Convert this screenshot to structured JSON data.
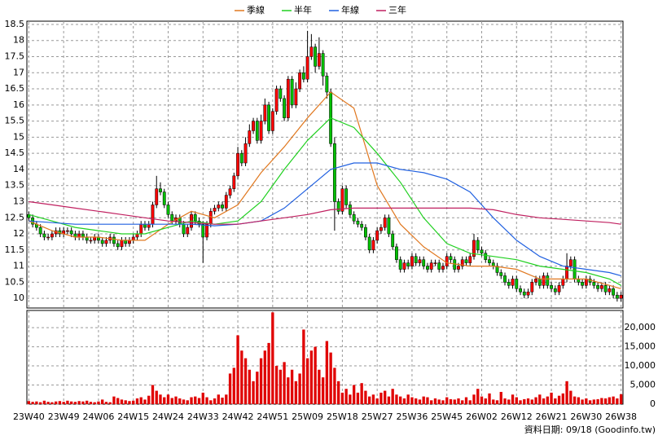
{
  "chart_data": {
    "type": "candlestick",
    "source": "資料日期: 09/18 (Goodinfo.tw)",
    "legend": "top",
    "grid": true,
    "up_color": "#ff0000",
    "down_color": "#00c000",
    "volume_color": "#e00000",
    "categories": [
      "23W40",
      null,
      null,
      null,
      null,
      null,
      null,
      null,
      null,
      "23W49",
      null,
      null,
      null,
      null,
      null,
      null,
      null,
      null,
      "24W06",
      null,
      null,
      null,
      null,
      null,
      null,
      null,
      null,
      "24W15",
      null,
      null,
      null,
      null,
      null,
      null,
      null,
      null,
      "24W24",
      null,
      null,
      null,
      null,
      null,
      null,
      null,
      null,
      "24W33",
      null,
      null,
      null,
      null,
      null,
      null,
      null,
      null,
      "24W42",
      null,
      null,
      null,
      null,
      null,
      null,
      null,
      null,
      "24W51",
      null,
      null,
      null,
      null,
      null,
      null,
      null,
      null,
      "25W09",
      null,
      null,
      null,
      null,
      null,
      null,
      null,
      null,
      "25W18",
      null,
      null,
      null,
      null,
      null,
      null,
      null,
      null,
      "25W27",
      null,
      null,
      null,
      null,
      null,
      null,
      null,
      null,
      "25W36",
      null,
      null,
      null,
      null,
      null,
      null,
      null,
      null,
      "25W45",
      null,
      null,
      null,
      null,
      null,
      null,
      null,
      null,
      "26W02",
      null,
      null,
      null,
      null,
      null,
      null,
      null,
      null,
      "26W12",
      null,
      null,
      null,
      null,
      null,
      null,
      null,
      null,
      "26W21",
      null,
      null,
      null,
      null,
      null,
      null,
      null,
      null,
      "26W30",
      null,
      null,
      null,
      null,
      null,
      null,
      null,
      null,
      "26W38"
    ],
    "open": [
      12.6,
      12.5,
      12.3,
      12.2,
      12.0,
      11.9,
      11.9,
      12.0,
      12.1,
      12.0,
      12.1,
      12.1,
      12.0,
      11.9,
      12.0,
      11.9,
      11.8,
      11.8,
      11.9,
      11.8,
      11.7,
      11.8,
      11.9,
      11.7,
      11.6,
      11.8,
      11.7,
      11.8,
      11.9,
      12.0,
      12.3,
      12.2,
      12.3,
      12.9,
      13.4,
      13.3,
      12.9,
      12.6,
      12.4,
      12.5,
      12.3,
      12.0,
      12.2,
      12.6,
      12.4,
      12.3,
      11.9,
      12.3,
      12.7,
      12.8,
      12.9,
      12.8,
      13.2,
      13.4,
      13.8,
      14.5,
      14.2,
      14.8,
      15.2,
      15.5,
      14.9,
      15.5,
      16.0,
      15.2,
      15.8,
      16.5,
      16.2,
      15.6,
      16.8,
      16.0,
      16.5,
      17.0,
      16.8,
      17.5,
      17.8,
      17.2,
      17.6,
      16.9,
      16.4,
      14.8,
      13.0,
      12.7,
      13.4,
      12.9,
      12.6,
      12.4,
      12.3,
      12.2,
      11.9,
      11.5,
      11.8,
      12.1,
      12.2,
      12.5,
      12.0,
      11.6,
      11.2,
      10.9,
      11.1,
      11.0,
      11.3,
      11.1,
      11.2,
      11.0,
      10.9,
      11.1,
      11.1,
      10.9,
      11.0,
      11.3,
      11.2,
      10.9,
      11.0,
      11.2,
      11.1,
      11.3,
      11.8,
      11.5,
      11.4,
      11.2,
      11.1,
      11.0,
      10.8,
      10.7,
      10.5,
      10.4,
      10.6,
      10.3,
      10.2,
      10.1,
      10.2,
      10.5,
      10.6,
      10.4,
      10.7,
      10.4,
      10.3,
      10.2,
      10.4,
      10.6,
      11.0,
      11.2,
      10.6,
      10.5,
      10.4,
      10.6,
      10.5,
      10.4,
      10.3,
      10.4,
      10.2,
      10.3,
      10.1,
      10.0
    ],
    "high": [
      12.7,
      12.6,
      12.4,
      12.3,
      12.1,
      12.0,
      12.1,
      12.2,
      12.2,
      12.2,
      12.2,
      12.2,
      12.1,
      12.1,
      12.1,
      12.0,
      11.9,
      12.0,
      12.0,
      11.9,
      11.9,
      12.0,
      12.0,
      11.8,
      11.9,
      11.9,
      11.9,
      12.0,
      12.1,
      12.4,
      12.4,
      12.4,
      13.0,
      13.8,
      13.6,
      13.4,
      13.0,
      12.7,
      12.6,
      12.6,
      12.4,
      12.3,
      12.7,
      12.7,
      12.5,
      12.4,
      12.4,
      12.8,
      12.9,
      13.0,
      13.0,
      13.3,
      13.5,
      13.9,
      14.7,
      14.6,
      15.0,
      15.4,
      15.6,
      15.6,
      15.7,
      16.2,
      16.1,
      15.9,
      16.6,
      16.6,
      16.3,
      16.9,
      16.9,
      16.7,
      17.1,
      17.2,
      18.3,
      18.2,
      17.9,
      18.1,
      17.7,
      17.0,
      16.5,
      15.0,
      13.1,
      13.5,
      13.5,
      13.0,
      12.7,
      12.5,
      12.4,
      12.3,
      12.0,
      11.9,
      12.2,
      12.3,
      12.6,
      12.6,
      12.1,
      11.7,
      11.3,
      11.2,
      11.2,
      11.4,
      11.4,
      11.3,
      11.3,
      11.1,
      11.2,
      11.2,
      11.2,
      11.1,
      11.4,
      11.4,
      11.3,
      11.1,
      11.3,
      11.3,
      11.4,
      12.0,
      11.9,
      11.6,
      11.5,
      11.3,
      11.2,
      11.1,
      10.9,
      10.8,
      10.6,
      10.7,
      10.7,
      10.4,
      10.3,
      10.3,
      10.6,
      10.7,
      10.7,
      10.8,
      10.8,
      10.5,
      10.4,
      10.5,
      10.7,
      11.4,
      11.3,
      11.3,
      10.7,
      10.6,
      10.7,
      10.7,
      10.6,
      10.5,
      10.5,
      10.5,
      10.4,
      10.4,
      10.2,
      10.2
    ],
    "low": [
      12.4,
      12.2,
      12.1,
      11.9,
      11.8,
      11.8,
      11.8,
      11.9,
      11.9,
      11.9,
      12.0,
      11.9,
      11.8,
      11.8,
      11.8,
      11.7,
      11.7,
      11.7,
      11.7,
      11.6,
      11.6,
      11.7,
      11.6,
      11.5,
      11.5,
      11.6,
      11.6,
      11.7,
      11.8,
      11.9,
      12.1,
      12.1,
      12.2,
      12.8,
      13.2,
      12.8,
      12.5,
      12.3,
      12.3,
      12.2,
      11.9,
      11.9,
      12.1,
      12.3,
      12.2,
      11.1,
      11.8,
      12.2,
      12.6,
      12.7,
      12.7,
      12.7,
      13.1,
      13.3,
      13.7,
      14.1,
      14.1,
      14.7,
      15.1,
      14.8,
      14.8,
      15.4,
      15.1,
      15.1,
      15.7,
      16.1,
      15.5,
      15.5,
      15.9,
      15.9,
      16.4,
      16.7,
      16.7,
      17.4,
      17.0,
      17.1,
      16.6,
      16.2,
      14.7,
      12.1,
      12.6,
      12.6,
      12.8,
      12.5,
      12.3,
      12.2,
      12.1,
      11.8,
      11.4,
      11.4,
      11.7,
      12.0,
      12.1,
      11.9,
      11.5,
      11.1,
      10.8,
      10.8,
      10.9,
      10.9,
      11.0,
      11.0,
      10.9,
      10.8,
      10.8,
      11.0,
      10.8,
      10.8,
      10.9,
      11.1,
      10.8,
      10.8,
      10.9,
      11.0,
      11.0,
      11.2,
      11.4,
      11.3,
      11.1,
      11.0,
      10.9,
      10.7,
      10.6,
      10.4,
      10.3,
      10.3,
      10.2,
      10.1,
      10.0,
      10.0,
      10.1,
      10.4,
      10.3,
      10.3,
      10.3,
      10.2,
      10.1,
      10.1,
      10.3,
      10.5,
      10.9,
      10.5,
      10.4,
      10.3,
      10.3,
      10.4,
      10.3,
      10.2,
      10.2,
      10.1,
      10.1,
      10.0,
      9.9,
      9.9
    ],
    "close": [
      12.5,
      12.3,
      12.2,
      12.0,
      11.9,
      11.9,
      12.0,
      12.1,
      12.0,
      12.1,
      12.1,
      12.0,
      11.9,
      12.0,
      11.9,
      11.8,
      11.8,
      11.9,
      11.8,
      11.7,
      11.8,
      11.9,
      11.7,
      11.6,
      11.8,
      11.7,
      11.8,
      11.9,
      12.0,
      12.3,
      12.2,
      12.3,
      12.9,
      13.4,
      13.3,
      12.9,
      12.6,
      12.4,
      12.5,
      12.3,
      12.0,
      12.2,
      12.6,
      12.4,
      12.3,
      11.9,
      12.3,
      12.7,
      12.8,
      12.9,
      12.8,
      13.2,
      13.4,
      13.8,
      14.5,
      14.2,
      14.8,
      15.2,
      15.5,
      14.9,
      15.5,
      16.0,
      15.2,
      15.8,
      16.5,
      16.2,
      15.6,
      16.8,
      16.0,
      16.5,
      17.0,
      16.8,
      17.5,
      17.8,
      17.2,
      17.6,
      16.9,
      16.4,
      14.8,
      13.0,
      12.7,
      13.4,
      12.9,
      12.6,
      12.4,
      12.3,
      12.2,
      11.9,
      11.5,
      11.8,
      12.1,
      12.2,
      12.5,
      12.0,
      11.6,
      11.2,
      10.9,
      11.1,
      11.0,
      11.3,
      11.1,
      11.2,
      11.0,
      10.9,
      11.1,
      11.1,
      10.9,
      11.0,
      11.3,
      11.2,
      10.9,
      11.0,
      11.2,
      11.1,
      11.3,
      11.8,
      11.5,
      11.4,
      11.2,
      11.1,
      11.0,
      10.8,
      10.7,
      10.5,
      10.4,
      10.6,
      10.3,
      10.2,
      10.1,
      10.2,
      10.5,
      10.6,
      10.4,
      10.7,
      10.4,
      10.3,
      10.2,
      10.4,
      10.6,
      11.0,
      11.2,
      10.6,
      10.5,
      10.4,
      10.6,
      10.5,
      10.4,
      10.3,
      10.4,
      10.2,
      10.3,
      10.1,
      10.0,
      10.1
    ],
    "volume": [
      800,
      600,
      700,
      500,
      900,
      600,
      500,
      700,
      800,
      600,
      900,
      700,
      600,
      800,
      700,
      900,
      600,
      500,
      700,
      1200,
      600,
      500,
      2000,
      1600,
      1200,
      1000,
      800,
      900,
      1500,
      1800,
      1200,
      2200,
      5000,
      3500,
      2500,
      1800,
      2500,
      1600,
      2000,
      1500,
      1200,
      1000,
      1800,
      2000,
      1600,
      3000,
      1800,
      1000,
      1500,
      2500,
      1700,
      2500,
      8000,
      9500,
      18000,
      14000,
      12000,
      9000,
      6000,
      8500,
      12000,
      14000,
      16000,
      24000,
      10000,
      9000,
      11000,
      7000,
      9000,
      6000,
      8000,
      19500,
      12000,
      14000,
      15000,
      9000,
      7000,
      16500,
      13500,
      9500,
      6000,
      3000,
      4000,
      2500,
      5000,
      3000,
      5500,
      3500,
      2000,
      2500,
      1500,
      3000,
      3500,
      2000,
      4000,
      2500,
      2000,
      1500,
      2500,
      1800,
      1500,
      1200,
      2000,
      1800,
      1000,
      1500,
      1200,
      1000,
      1800,
      1300,
      1200,
      1500,
      1000,
      1800,
      1000,
      2500,
      4000,
      2000,
      1500,
      2800,
      1200,
      1000,
      3200,
      1500,
      1200,
      2500,
      1800,
      1000,
      1300,
      1500,
      1200,
      1800,
      2500,
      1500,
      2000,
      3000,
      1500,
      2200,
      2800,
      6000,
      3500,
      2000,
      1800,
      1200,
      1500,
      1000,
      1200,
      1300,
      1600,
      1500,
      1800,
      2000,
      1500,
      2600
    ],
    "ylim": [
      9.7,
      18.6
    ],
    "yticks": [
      10,
      10.5,
      11,
      11.5,
      12,
      12.5,
      13,
      13.5,
      14,
      14.5,
      15,
      15.5,
      16,
      16.5,
      17,
      17.5,
      18,
      18.5
    ],
    "y2lim": [
      0,
      24500
    ],
    "y2ticks": [
      0,
      {
        "value": 5000,
        "label": "5,000"
      },
      {
        "value": 10000,
        "label": "10,000"
      },
      {
        "value": 15000,
        "label": "15,000"
      },
      {
        "value": 20000,
        "label": "20,000"
      }
    ],
    "series": [
      {
        "name": "季線",
        "color": "#e07820",
        "x": [
          0,
          6,
          12,
          18,
          24,
          30,
          36,
          42,
          48,
          54,
          60,
          66,
          72,
          78,
          84,
          90,
          96,
          102,
          108,
          114,
          120,
          126,
          132,
          138,
          144,
          150,
          153
        ],
        "values": [
          12.4,
          12.1,
          11.9,
          11.9,
          11.8,
          11.8,
          12.3,
          12.7,
          12.5,
          12.9,
          13.9,
          14.7,
          15.6,
          16.4,
          15.9,
          13.5,
          12.3,
          11.6,
          11.1,
          11.0,
          11.0,
          10.9,
          10.6,
          10.6,
          10.6,
          10.4,
          10.3
        ]
      },
      {
        "name": "半年",
        "color": "#20d020",
        "x": [
          0,
          6,
          12,
          18,
          24,
          30,
          36,
          42,
          48,
          54,
          60,
          66,
          72,
          78,
          84,
          90,
          96,
          102,
          108,
          114,
          120,
          126,
          132,
          138,
          144,
          150,
          153
        ],
        "values": [
          12.6,
          12.4,
          12.2,
          12.1,
          12.0,
          12.0,
          12.2,
          12.4,
          12.3,
          12.4,
          13.0,
          14.0,
          14.9,
          15.6,
          15.3,
          14.5,
          13.6,
          12.5,
          11.7,
          11.4,
          11.3,
          11.2,
          11.0,
          10.9,
          10.8,
          10.6,
          10.4
        ]
      },
      {
        "name": "年線",
        "color": "#2060e0",
        "x": [
          0,
          6,
          12,
          18,
          24,
          30,
          36,
          42,
          48,
          54,
          60,
          66,
          72,
          78,
          84,
          90,
          96,
          102,
          108,
          114,
          120,
          126,
          132,
          138,
          144,
          150,
          153
        ],
        "values": [
          12.4,
          12.35,
          12.3,
          12.3,
          12.3,
          12.3,
          12.3,
          12.3,
          12.25,
          12.3,
          12.4,
          12.8,
          13.4,
          14.0,
          14.2,
          14.2,
          14.0,
          13.9,
          13.7,
          13.3,
          12.5,
          11.8,
          11.3,
          11.0,
          10.9,
          10.8,
          10.7
        ]
      },
      {
        "name": "三年",
        "color": "#c02060",
        "x": [
          0,
          6,
          12,
          18,
          24,
          30,
          36,
          42,
          48,
          54,
          60,
          66,
          72,
          78,
          84,
          90,
          96,
          102,
          108,
          114,
          120,
          126,
          132,
          138,
          144,
          150,
          153
        ],
        "values": [
          13.0,
          12.9,
          12.8,
          12.7,
          12.6,
          12.5,
          12.4,
          12.35,
          12.3,
          12.3,
          12.4,
          12.5,
          12.6,
          12.75,
          12.8,
          12.8,
          12.8,
          12.8,
          12.8,
          12.8,
          12.75,
          12.6,
          12.5,
          12.45,
          12.4,
          12.35,
          12.3
        ]
      }
    ]
  }
}
